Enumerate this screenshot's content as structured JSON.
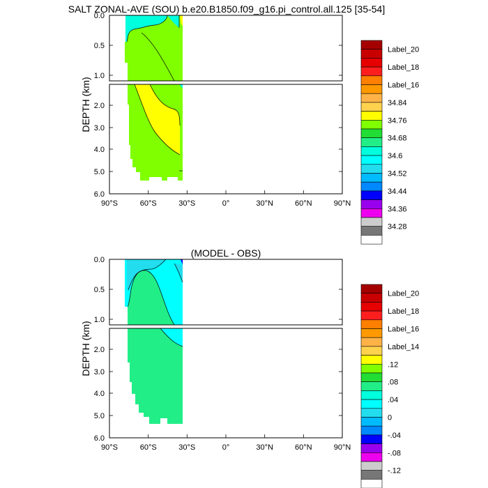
{
  "chart_data": [
    {
      "type": "contour",
      "title": "SALT ZONAL-AVE (SOU) b.e20.B1850.f09_g16.pi_control.all.125 [35-54]",
      "ylabel": "DEPTH (km)",
      "x_ticks": [
        "90°S",
        "60°S",
        "30°S",
        "0°",
        "30°N",
        "60°N",
        "90°N"
      ],
      "y_ticks_upper": [
        "0.0",
        "0.5",
        "1.0"
      ],
      "y_ticks_lower": [
        "2.0",
        "3.0",
        "4.0",
        "5.0",
        "6.0"
      ],
      "xlim": [
        -90,
        90
      ],
      "ylim_upper": [
        0,
        1.1
      ],
      "ylim_lower": [
        1.1,
        6.0
      ],
      "colorbar": {
        "labels": [
          "Label_20",
          "Label_18",
          "Label_16",
          "34.84",
          "34.76",
          "34.68",
          "34.6",
          "34.52",
          "34.44",
          "34.36",
          "34.28"
        ],
        "colors": [
          "#a50000",
          "#c80000",
          "#e60000",
          "#ff1e1e",
          "#ff7f00",
          "#ff9900",
          "#ffb347",
          "#ffd24d",
          "#ffff00",
          "#7fff00",
          "#22dd33",
          "#22ee88",
          "#00ffdd",
          "#00ffff",
          "#22ddee",
          "#00bbff",
          "#0088ff",
          "#0000ff",
          "#9900ee",
          "#ee00ee",
          "#cccccc",
          "#777777",
          "#ffffff"
        ]
      }
    },
    {
      "type": "contour",
      "title": "(MODEL - OBS)",
      "ylabel": "DEPTH (km)",
      "x_ticks": [
        "90°S",
        "60°S",
        "30°S",
        "0°",
        "30°N",
        "60°N",
        "90°N"
      ],
      "y_ticks_upper": [
        "0.0",
        "0.5",
        "1.0"
      ],
      "y_ticks_lower": [
        "2.0",
        "3.0",
        "4.0",
        "5.0",
        "6.0"
      ],
      "xlim": [
        -90,
        90
      ],
      "ylim_upper": [
        0,
        1.1
      ],
      "ylim_lower": [
        1.1,
        6.0
      ],
      "colorbar": {
        "labels": [
          "Label_20",
          "Label_18",
          "Label_16",
          "Label_14",
          ".12",
          ".08",
          ".04",
          "0",
          "-.04",
          "-.08",
          "-.12"
        ],
        "colors": [
          "#a50000",
          "#c80000",
          "#e60000",
          "#ff1e1e",
          "#ff7f00",
          "#ff9900",
          "#ffb347",
          "#ffd24d",
          "#ffff00",
          "#7fff00",
          "#22dd33",
          "#22ee88",
          "#00ffdd",
          "#00ffff",
          "#22ddee",
          "#00bbff",
          "#0088ff",
          "#0000ff",
          "#9900ee",
          "#ee00ee",
          "#cccccc",
          "#777777",
          "#ffffff"
        ]
      }
    }
  ]
}
